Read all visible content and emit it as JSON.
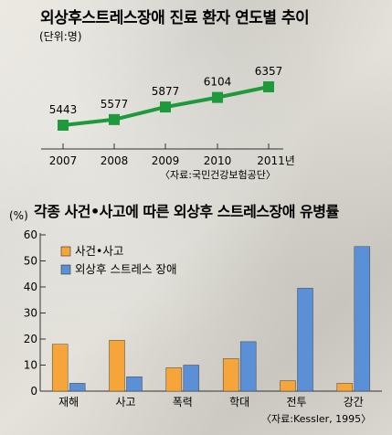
{
  "chart_data": [
    {
      "type": "line",
      "title": "외상후스트레스장애 진료 환자 연도별 추이",
      "unit": "(단위:명)",
      "categories": [
        "2007",
        "2008",
        "2009",
        "2010",
        "2011년"
      ],
      "values": [
        5443,
        5577,
        5877,
        6104,
        6357
      ],
      "value_labels": [
        "5443",
        "5577",
        "5877",
        "6104",
        "6357"
      ],
      "source": "〈자료:국민건강보험공단〉",
      "ylim": [
        5200,
        6500
      ],
      "color": "#1e9a3c"
    },
    {
      "type": "bar",
      "title": "각종 사건•사고에 따른 외상후 스트레스장애 유병률",
      "ylabel": "(%)",
      "categories": [
        "재해",
        "사고",
        "폭력",
        "학대",
        "전투",
        "강간"
      ],
      "ylim": [
        0,
        60
      ],
      "yticks": [
        "0",
        "10",
        "20",
        "30",
        "40",
        "50",
        "60"
      ],
      "series": [
        {
          "name": "사건•사고",
          "color": "#f5a53a",
          "values": [
            18,
            19.5,
            9,
            12.5,
            4,
            3
          ]
        },
        {
          "name": "외상후 스트레스 장애",
          "color": "#5b8fd6",
          "values": [
            3,
            5.5,
            10,
            19,
            39.5,
            55.5
          ]
        }
      ],
      "source": "〈자료:Kessler, 1995〉"
    }
  ]
}
